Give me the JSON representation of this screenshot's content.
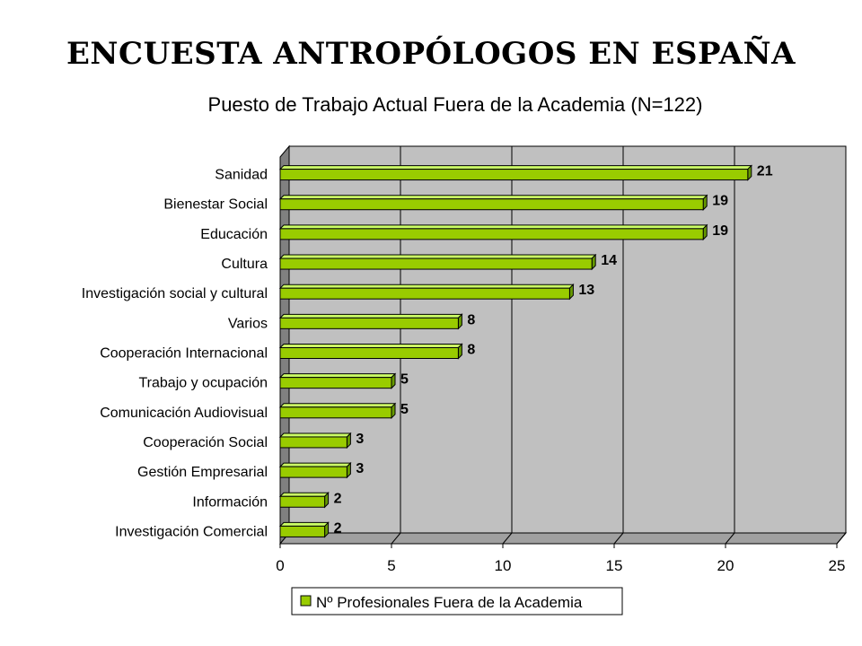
{
  "slide": {
    "title": "ENCUESTA ANTROPÓLOGOS EN ESPAÑA"
  },
  "chart_data": {
    "type": "bar",
    "orientation": "horizontal",
    "title": "Puesto de Trabajo Actual Fuera de la Academia (N=122)",
    "categories": [
      "Sanidad",
      "Bienestar Social",
      "Educación",
      "Cultura",
      "Investigación social y cultural",
      "Varios",
      "Cooperación Internacional",
      "Trabajo y ocupación",
      "Comunicación Audiovisual",
      "Cooperación Social",
      "Gestión Empresarial",
      "Información",
      "Investigación Comercial"
    ],
    "series": [
      {
        "name": "Nº Profesionales Fuera de la Academia",
        "values": [
          21,
          19,
          19,
          14,
          13,
          8,
          8,
          5,
          5,
          3,
          3,
          2,
          2
        ]
      }
    ],
    "xlim": [
      0,
      25
    ],
    "xticks": [
      "0",
      "5",
      "10",
      "15",
      "20",
      "25"
    ],
    "grid": true,
    "legend": "bottom-center",
    "colors": {
      "bar": "#99cc00",
      "bar_top": "#ccff66",
      "bar_side": "#669900",
      "plot_back": "#c0c0c0",
      "plot_floor": "#808080"
    }
  }
}
